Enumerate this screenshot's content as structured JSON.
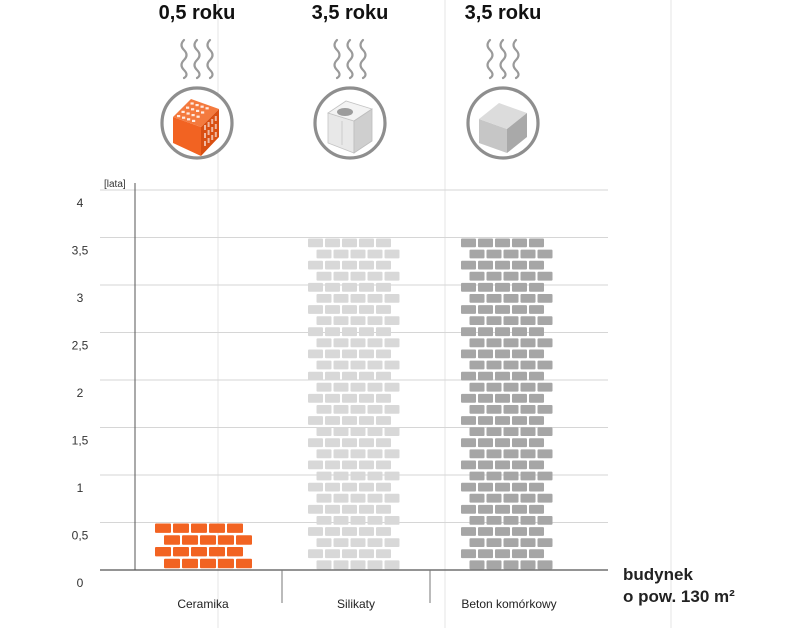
{
  "chart_data": {
    "type": "bar",
    "categories": [
      "Ceramika",
      "Silikaty",
      "Beton komórkowy"
    ],
    "values": [
      0.5,
      3.5,
      3.5
    ],
    "value_labels": [
      "0,5 roku",
      "3,5 roku",
      "3,5 roku"
    ],
    "yunit": "[lata]",
    "xlabel_line1": "budynek",
    "xlabel_line2": "o pow. 130 m²",
    "ylim": [
      0,
      4
    ],
    "yticks": [
      "0",
      "0,5",
      "1",
      "1,5",
      "2",
      "2,5",
      "3",
      "3,5",
      "4"
    ],
    "grid": true,
    "icons": [
      "ceramic-brick-icon",
      "silicate-block-icon",
      "aerated-concrete-block-icon"
    ],
    "colors": {
      "ceramika": "#f26322",
      "ceramika_dark": "#d94f12",
      "silikaty": "#d8d8d8",
      "beton": "#a6a6a6",
      "grid": "#d6d6d6",
      "axis": "#555555",
      "steam": "#9a9a9a",
      "icon_ring": "#8e8e8e"
    }
  }
}
